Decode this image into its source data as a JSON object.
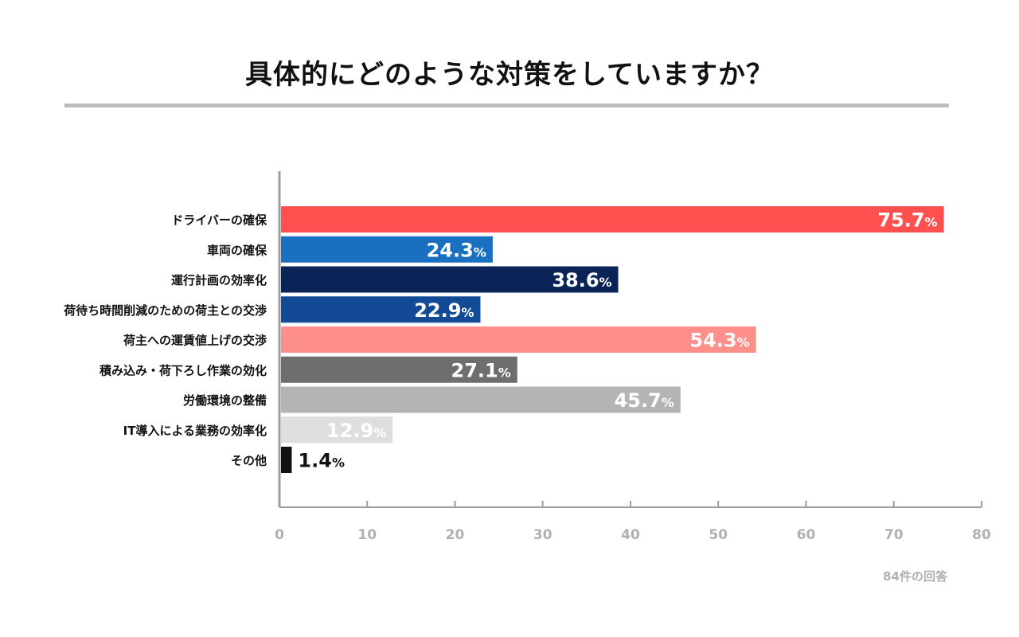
{
  "title": "具体的にどのような対策をしていますか？",
  "footnote": "84件の回答",
  "colors": {
    "axis": "#9e9e9e",
    "title_rule": "#bdbdbd",
    "tick_text": "#b0b0b0"
  },
  "chart_data": {
    "type": "bar",
    "orientation": "horizontal",
    "title": "具体的にどのような対策をしていますか？",
    "categories": [
      "ドライバーの確保",
      "車両の確保",
      "運行計画の効率化",
      "荷待ち時間削減のための荷主との交渉",
      "荷主への運賃値上げの交渉",
      "積み込み・荷下ろし作業の効化",
      "労働環境の整備",
      "IT導入による業務の効率化",
      "その他"
    ],
    "values": [
      75.7,
      24.3,
      38.6,
      22.9,
      54.3,
      27.1,
      45.7,
      12.9,
      1.4
    ],
    "value_labels": [
      "75.7",
      "24.3",
      "38.6",
      "22.9",
      "54.3",
      "27.1",
      "45.7",
      "12.9",
      "1.4"
    ],
    "unit": "%",
    "colors": [
      "#ff5050",
      "#1a70c0",
      "#0a2458",
      "#124a96",
      "#ff8f8a",
      "#6e6e6e",
      "#b4b4b6",
      "#dedede",
      "#111111"
    ],
    "label_colors": [
      "#ffffff",
      "#ffffff",
      "#ffffff",
      "#ffffff",
      "#ffffff",
      "#ffffff",
      "#ffffff",
      "#ffffff",
      "#111111"
    ],
    "xlim": [
      0,
      80
    ],
    "xticks": [
      0,
      10,
      20,
      30,
      40,
      50,
      60,
      70,
      80
    ],
    "xlabel": "",
    "ylabel": "",
    "grid": false,
    "legend": "none"
  }
}
